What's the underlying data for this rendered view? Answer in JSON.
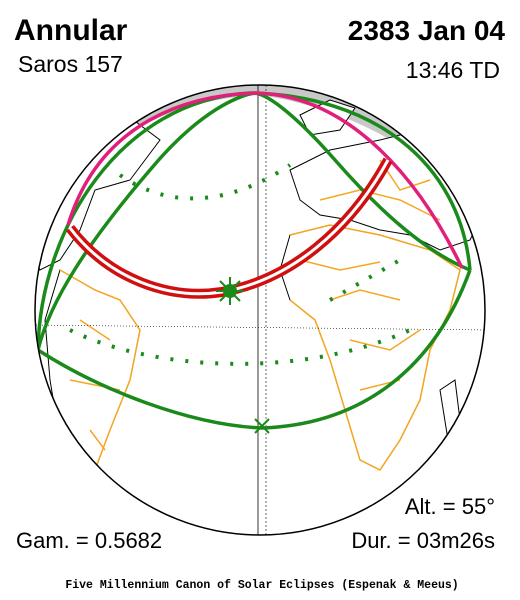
{
  "header": {
    "eclipse_type": "Annular",
    "saros": "Saros 157",
    "date": "2383 Jan 04",
    "time": "13:46 TD"
  },
  "footer": {
    "gamma": "Gam. = 0.5682",
    "altitude": "Alt. = 55°",
    "duration": "Dur. = 03m26s",
    "credit": "Five Millennium Canon of Solar Eclipses (Espenak & Meeus)"
  }
}
